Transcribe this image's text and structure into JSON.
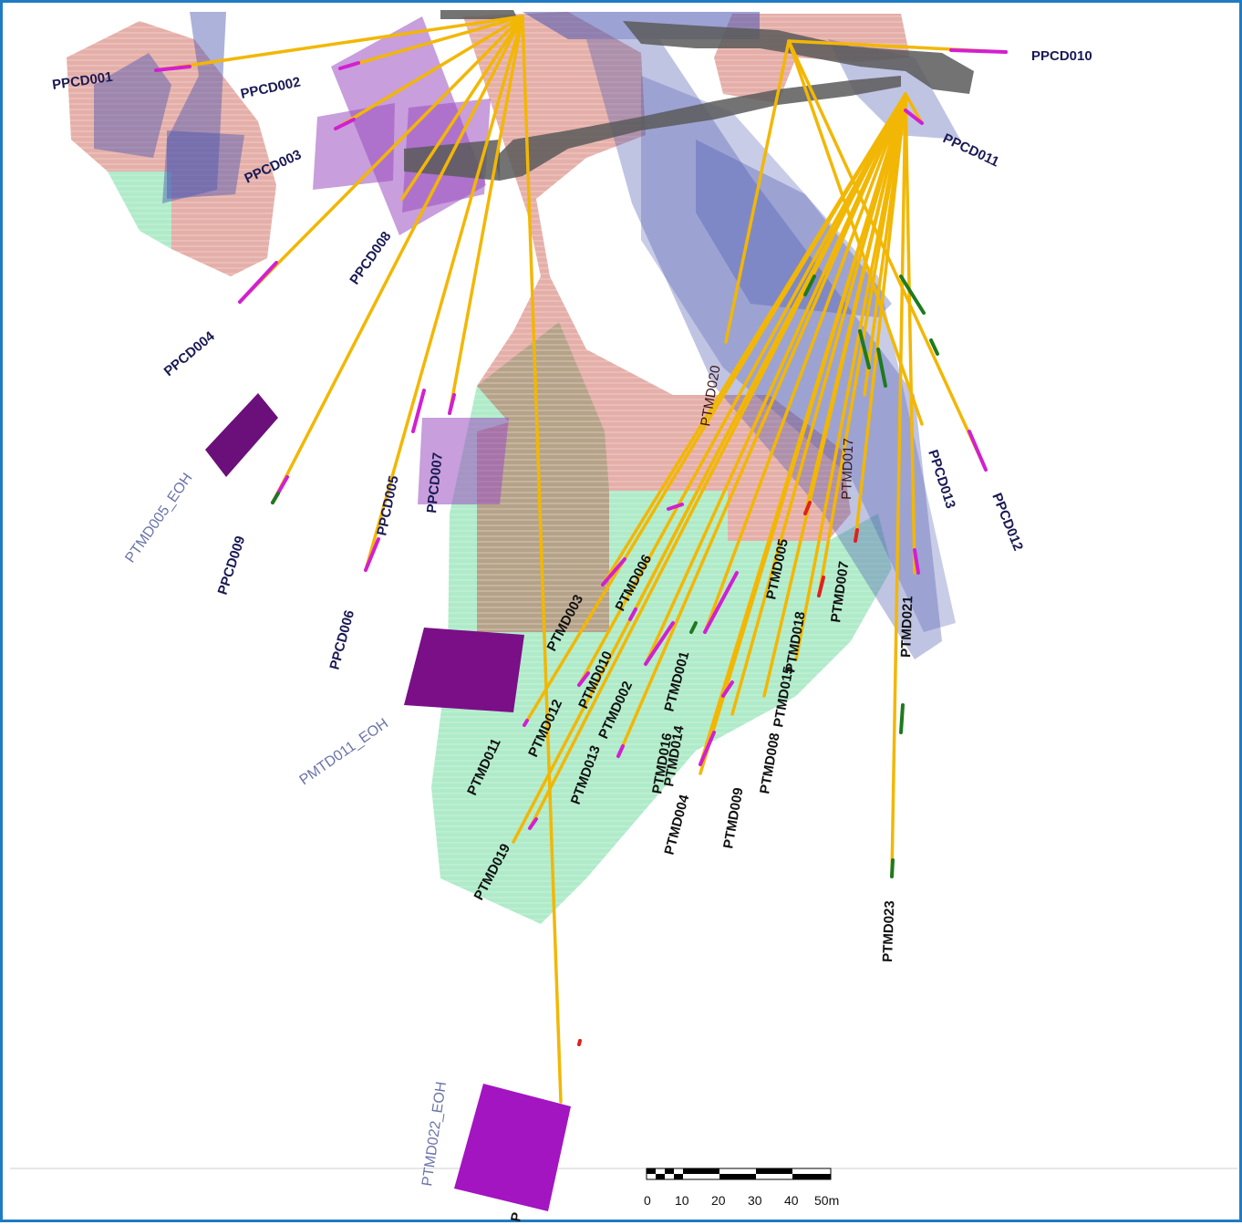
{
  "colors": {
    "frame": "#1f7bc4",
    "drillhole": "#f2b705",
    "interval_magenta": "#d21fd2",
    "interval_green": "#1e7a1e",
    "interval_red": "#e02020",
    "block_red": "#c0392b",
    "block_green": "#2ecc71",
    "plane_blue": "#4a55b0",
    "plane_violet": "#9b4fc0",
    "eoh_marker": "#8b0f9c",
    "workings": "#555555"
  },
  "holes": {
    "PPCD001": "PPCD001",
    "PPCD002": "PPCD002",
    "PPCD003": "PPCD003",
    "PPCD004": "PPCD004",
    "PPCD005": "PPCD005",
    "PPCD006": "PPCD006",
    "PPCD007": "PPCD007",
    "PPCD008": "PPCD008",
    "PPCD009": "PPCD009",
    "PPCD010": "PPCD010",
    "PPCD011": "PPCD011",
    "PPCD012": "PPCD012",
    "PPCD013": "PPCD013",
    "PTMD001": "PTMD001",
    "PTMD002": "PTMD002",
    "PTMD003": "PTMD003",
    "PTMD004": "PTMD004",
    "PTMD005": "PTMD005",
    "PTMD006": "PTMD006",
    "PTMD007": "PTMD007",
    "PTMD008": "PTMD008",
    "PTMD009": "PTMD009",
    "PTMD010": "PTMD010",
    "PTMD011": "PTMD011",
    "PTMD012": "PTMD012",
    "PTMD013": "PTMD013",
    "PTMD014": "PTMD014",
    "PTMD015": "PTMD015",
    "PTMD016": "PTMD016",
    "PTMD017": "PTMD017",
    "PTMD018": "PTMD018",
    "PTMD019": "PTMD019",
    "PTMD020": "PTMD020",
    "PTMD021": "PTMD021",
    "PTMD023": "PTMD023",
    "P_partial": "P"
  },
  "eoh": {
    "ptmd005": "PTMD005_EOH",
    "pmtd011": "PMTD011_EOH",
    "ptmd022": "PTMD022_EOH"
  },
  "scale_bar": {
    "ticks": [
      "0",
      "10",
      "20",
      "30",
      "40",
      "50m"
    ]
  }
}
